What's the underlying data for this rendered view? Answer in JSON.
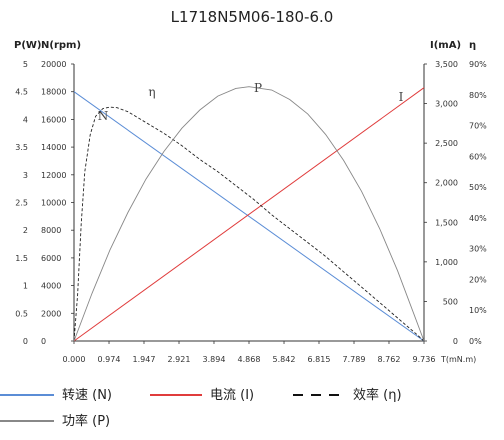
{
  "chart_data": {
    "type": "line",
    "title": "L1718N5M06-180-6.0",
    "xlabel": "T(mN.m)",
    "x_ticks": [
      "0.000",
      "0.974",
      "1.947",
      "2.921",
      "3.894",
      "4.868",
      "5.842",
      "6.815",
      "7.789",
      "8.762",
      "9.736"
    ],
    "xlim": [
      0,
      9.736
    ],
    "axes": {
      "power": {
        "label": "P(W)",
        "ticks": [
          "0",
          "0.5",
          "1",
          "1.5",
          "2",
          "2.5",
          "3",
          "3.5",
          "4",
          "4.5",
          "5"
        ],
        "range": [
          0,
          5
        ]
      },
      "speed": {
        "label": "N(rpm)",
        "ticks": [
          "0",
          "2000",
          "4000",
          "6000",
          "8000",
          "10000",
          "12000",
          "14000",
          "16000",
          "18000",
          "20000"
        ],
        "range": [
          0,
          20000
        ]
      },
      "current": {
        "label": "I(mA)",
        "ticks": [
          "0",
          "500",
          "1,000",
          "1,500",
          "2,000",
          "2,500",
          "3,000",
          "3,500"
        ],
        "range": [
          0,
          3500
        ]
      },
      "efficiency": {
        "label": "η",
        "ticks": [
          "0%",
          "10%",
          "20%",
          "30%",
          "40%",
          "50%",
          "60%",
          "70%",
          "80%",
          "90%"
        ],
        "range": [
          0,
          90
        ]
      }
    },
    "series": [
      {
        "name": "转速 (N)",
        "curve_label": "N",
        "axis": "speed",
        "color": "#5b8dd6",
        "dash": "",
        "x": [
          0,
          9.736
        ],
        "y": [
          18000,
          0
        ]
      },
      {
        "name": "电流 (I)",
        "curve_label": "I",
        "axis": "current",
        "color": "#e03c3c",
        "dash": "",
        "x": [
          0,
          9.736
        ],
        "y": [
          0,
          3200
        ]
      },
      {
        "name": "效率 (η)",
        "curve_label": "η",
        "axis": "efficiency",
        "color": "#222222",
        "dash": "3,2",
        "x": [
          0,
          0.1,
          0.2,
          0.3,
          0.45,
          0.6,
          0.8,
          1.0,
          1.2,
          1.5,
          2.0,
          2.5,
          3.0,
          3.5,
          4.0,
          4.5,
          5.0,
          5.5,
          6.0,
          6.5,
          7.0,
          7.5,
          8.0,
          8.5,
          9.0,
          9.5,
          9.736
        ],
        "y": [
          0,
          15,
          38,
          55,
          67,
          73,
          75.5,
          76,
          75.8,
          74.5,
          71,
          67.5,
          63.5,
          59,
          55,
          50.5,
          46,
          41,
          36.5,
          32,
          27.5,
          22.5,
          17.5,
          12.5,
          7.5,
          2.5,
          0
        ]
      },
      {
        "name": "功率 (P)",
        "curve_label": "P",
        "axis": "power",
        "color": "#888888",
        "dash": "",
        "x": [
          0,
          0.5,
          1.0,
          1.5,
          2.0,
          2.5,
          3.0,
          3.5,
          4.0,
          4.5,
          4.868,
          5.5,
          6.0,
          6.5,
          7.0,
          7.5,
          8.0,
          8.5,
          9.0,
          9.5,
          9.736
        ],
        "y": [
          0,
          0.86,
          1.64,
          2.32,
          2.92,
          3.42,
          3.84,
          4.17,
          4.42,
          4.56,
          4.59,
          4.53,
          4.36,
          4.1,
          3.73,
          3.26,
          2.7,
          2.03,
          1.27,
          0.41,
          0
        ]
      }
    ],
    "legend_position": "bottom-left",
    "grid": false
  }
}
